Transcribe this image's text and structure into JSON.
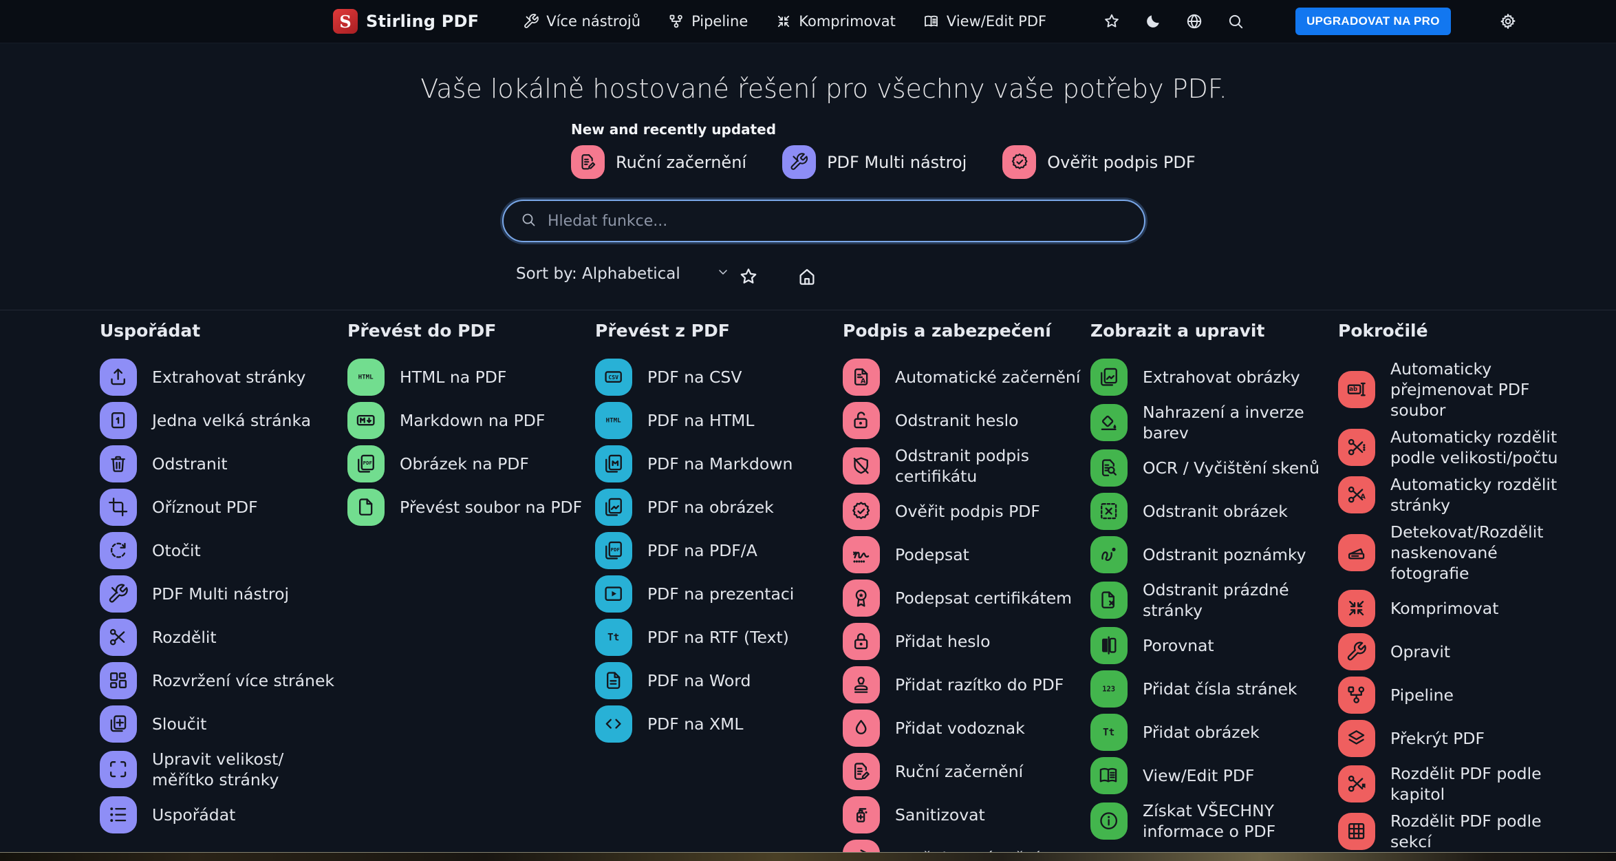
{
  "navbar": {
    "brand": "Stirling PDF",
    "items": [
      {
        "label": "Více nástrojů",
        "icon": "tools-icon"
      },
      {
        "label": "Pipeline",
        "icon": "pipeline-icon"
      },
      {
        "label": "Komprimovat",
        "icon": "compress-icon"
      },
      {
        "label": "View/Edit PDF",
        "icon": "book-open-icon"
      }
    ],
    "action_icons": [
      "star-icon",
      "moon-icon",
      "globe-icon",
      "search-icon"
    ],
    "upgrade_label": "UPGRADOVAT NA PRO",
    "upgrade_color": "#1277f0",
    "settings_icon": "gear-icon"
  },
  "hero": {
    "title": "Vaše lokálně hostované řešení pro všechny vaše potřeby PDF.",
    "updated_label": "New and recently updated",
    "featured": [
      {
        "label": "Ruční začernění",
        "icon": "doc-pencil-icon",
        "color": "#f5798f"
      },
      {
        "label": "PDF Multi nástroj",
        "icon": "tools-icon",
        "color": "#8d8df6"
      },
      {
        "label": "Ověřit podpis PDF",
        "icon": "seal-check-icon",
        "color": "#f5798f"
      }
    ]
  },
  "search": {
    "placeholder": "Hledat funkce..."
  },
  "toolbar": {
    "sort_label": "Sort by: Alphabetical"
  },
  "columns": [
    {
      "title": "Uspořádat",
      "accent": "#8e8ef6",
      "items": [
        {
          "label": "Extrahovat stránky",
          "icon": "upload-tray-icon"
        },
        {
          "label": "Jedna velká stránka",
          "icon": "page-one-icon"
        },
        {
          "label": "Odstranit",
          "icon": "trash-icon"
        },
        {
          "label": "Oříznout PDF",
          "icon": "crop-icon"
        },
        {
          "label": "Otočit",
          "icon": "rotate-icon"
        },
        {
          "label": "PDF Multi nástroj",
          "icon": "tools-icon"
        },
        {
          "label": "Rozdělit",
          "icon": "scissors-icon"
        },
        {
          "label": "Rozvržení více stránek",
          "icon": "layout-grid-icon"
        },
        {
          "label": "Sloučit",
          "icon": "merge-pages-icon"
        },
        {
          "label": "Upravit velikost/\nměřítko stránky",
          "icon": "resize-corners-icon"
        },
        {
          "label": "Uspořádat",
          "icon": "org-list-icon"
        }
      ]
    },
    {
      "title": "Převést do PDF",
      "accent": "#72dd8f",
      "items": [
        {
          "label": "HTML na PDF",
          "icon": "html-text-icon"
        },
        {
          "label": "Markdown na PDF",
          "icon": "markdown-box-icon"
        },
        {
          "label": "Obrázek na PDF",
          "icon": "pdf-stack-icon"
        },
        {
          "label": "Převést soubor na PDF",
          "icon": "file-blank-icon"
        }
      ]
    },
    {
      "title": "Převést z PDF",
      "accent": "#28b1d6",
      "items": [
        {
          "label": "PDF na CSV",
          "icon": "csv-box-icon"
        },
        {
          "label": "PDF na HTML",
          "icon": "html-text-icon"
        },
        {
          "label": "PDF na Markdown",
          "icon": "markdown-stack-icon"
        },
        {
          "label": "PDF na obrázek",
          "icon": "image-stack-icon"
        },
        {
          "label": "PDF na PDF/A",
          "icon": "pdf-stack-icon"
        },
        {
          "label": "PDF na prezentaci",
          "icon": "play-box-icon"
        },
        {
          "label": "PDF na RTF (Text)",
          "icon": "text-Tt-icon"
        },
        {
          "label": "PDF na Word",
          "icon": "file-lines-icon"
        },
        {
          "label": "PDF na XML",
          "icon": "code-angle-icon"
        }
      ]
    },
    {
      "title": "Podpis a zabezpečení",
      "accent": "#f5798f",
      "items": [
        {
          "label": "Automatické začernění",
          "icon": "doc-A-icon"
        },
        {
          "label": "Odstranit heslo",
          "icon": "unlock-icon"
        },
        {
          "label": "Odstranit podpis\ncertifikátu",
          "icon": "shield-slash-icon"
        },
        {
          "label": "Ověřit podpis PDF",
          "icon": "seal-check-icon"
        },
        {
          "label": "Podepsat",
          "icon": "signature-icon"
        },
        {
          "label": "Podepsat certifikátem",
          "icon": "medal-star-icon"
        },
        {
          "label": "Přidat heslo",
          "icon": "lock-icon"
        },
        {
          "label": "Přidat razítko do PDF",
          "icon": "stamp-icon"
        },
        {
          "label": "Přidat vodoznak",
          "icon": "droplet-icon"
        },
        {
          "label": "Ruční začernění",
          "icon": "doc-pencil-icon"
        },
        {
          "label": "Sanitizovat",
          "icon": "sanitize-bottle-icon"
        },
        {
          "label": "Změnit oprávnění",
          "icon": "permission-lock-icon"
        }
      ]
    },
    {
      "title": "Zobrazit a upravit",
      "accent": "#43b54d",
      "items": [
        {
          "label": "Extrahovat obrázky",
          "icon": "image-stack-icon"
        },
        {
          "label": "Nahrazení a inverze\nbarev",
          "icon": "paint-bucket-icon"
        },
        {
          "label": "OCR / Vyčištění skenů",
          "icon": "ocr-doc-icon"
        },
        {
          "label": "Odstranit obrázek",
          "icon": "image-remove-icon"
        },
        {
          "label": "Odstranit poznámky",
          "icon": "annotation-squiggle-icon"
        },
        {
          "label": "Odstranit prázdné\nstránky",
          "icon": "blank-page-x-icon"
        },
        {
          "label": "Porovnat",
          "icon": "compare-pages-icon"
        },
        {
          "label": "Přidat čísla stránek",
          "icon": "numbers-123-icon"
        },
        {
          "label": "Přidat obrázek",
          "icon": "text-Tt-icon"
        },
        {
          "label": "View/Edit PDF",
          "icon": "book-open-icon"
        },
        {
          "label": "Získat VŠECHNY\ninformace o PDF",
          "icon": "info-circle-icon"
        }
      ]
    },
    {
      "title": "Pokročilé",
      "accent": "#ef5f5f",
      "items": [
        {
          "label": "Automaticky\npřejmenovat PDF\nsoubor",
          "icon": "rename-ab-icon"
        },
        {
          "label": "Automaticky rozdělit\npodle velikosti/počtu",
          "icon": "scissors-lines-icon"
        },
        {
          "label": "Automaticky rozdělit\nstránky",
          "icon": "scissors-A-icon"
        },
        {
          "label": "Detekovat/Rozdělit\nnaskenované\nfotografie",
          "icon": "scanner-icon"
        },
        {
          "label": "Komprimovat",
          "icon": "compress-icon"
        },
        {
          "label": "Opravit",
          "icon": "wrench-icon"
        },
        {
          "label": "Pipeline",
          "icon": "pipeline-icon"
        },
        {
          "label": "Překrýt PDF",
          "icon": "layers-icon"
        },
        {
          "label": "Rozdělit PDF podle\nkapitol",
          "icon": "scissors-bookmark-icon"
        },
        {
          "label": "Rozdělit PDF podle\nsekcí",
          "icon": "grid-3x3-icon"
        }
      ]
    }
  ]
}
